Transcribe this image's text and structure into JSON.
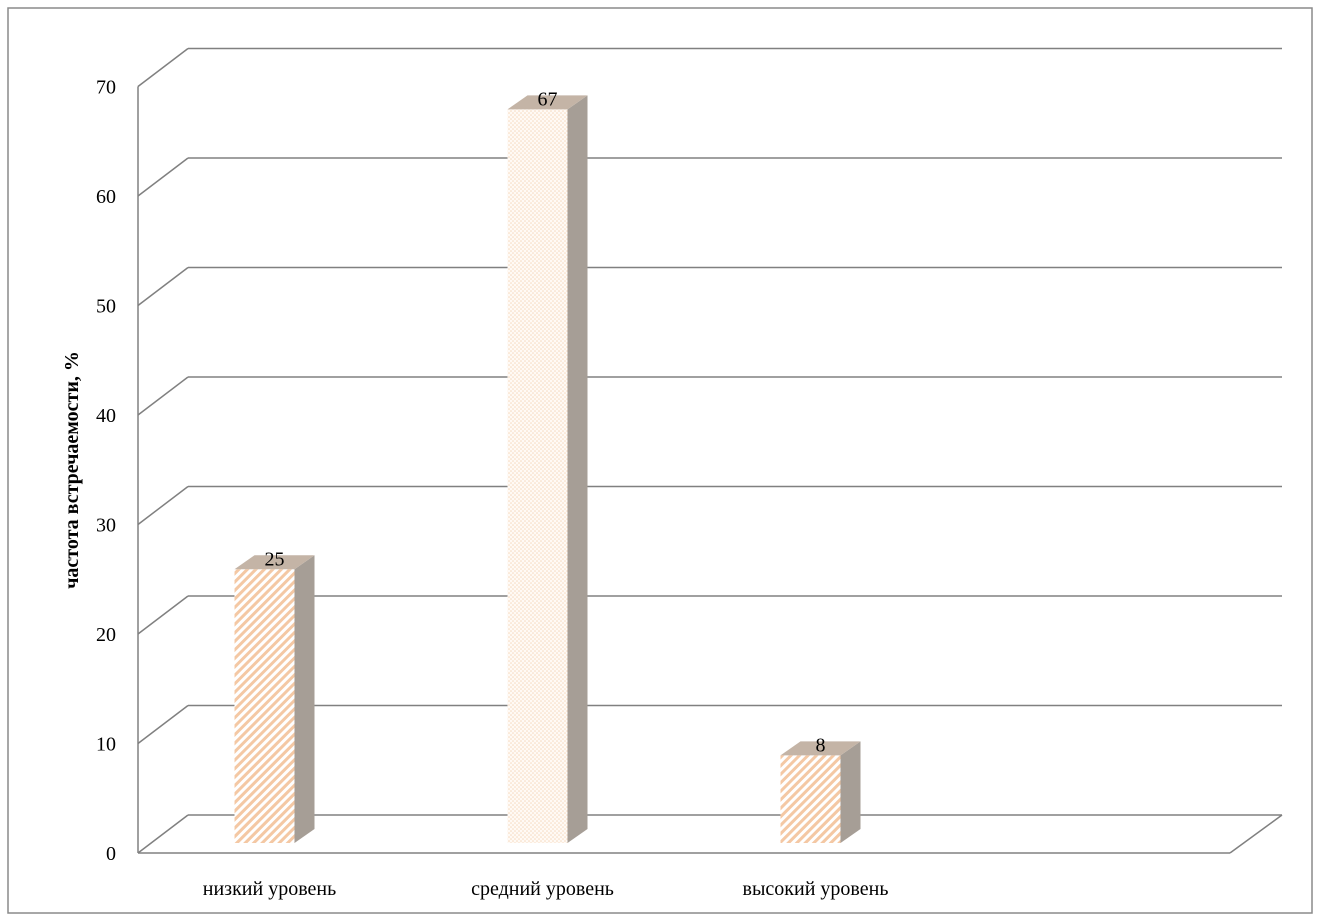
{
  "chart_data": {
    "type": "bar",
    "categories": [
      "низкий уровень",
      "средний уровень",
      "высокий уровень",
      ""
    ],
    "values": [
      25,
      67,
      8,
      null
    ],
    "data_labels": [
      "25",
      "67",
      "8",
      ""
    ],
    "xlabel": "",
    "ylabel": "частота встречаемости, %",
    "ylim": [
      0,
      70
    ],
    "yticks": [
      "0",
      "10",
      "20",
      "30",
      "40",
      "50",
      "60",
      "70"
    ],
    "grid": true,
    "legend": "none",
    "style": "3d-column",
    "colors": {
      "bar_fill": "#f4c8a4",
      "bar_stripe": "#ffffff",
      "bar_side": "#a69e96",
      "bar_top": "#c4b4a6",
      "grid": "#808080",
      "frame": "#8a8a8a"
    }
  }
}
